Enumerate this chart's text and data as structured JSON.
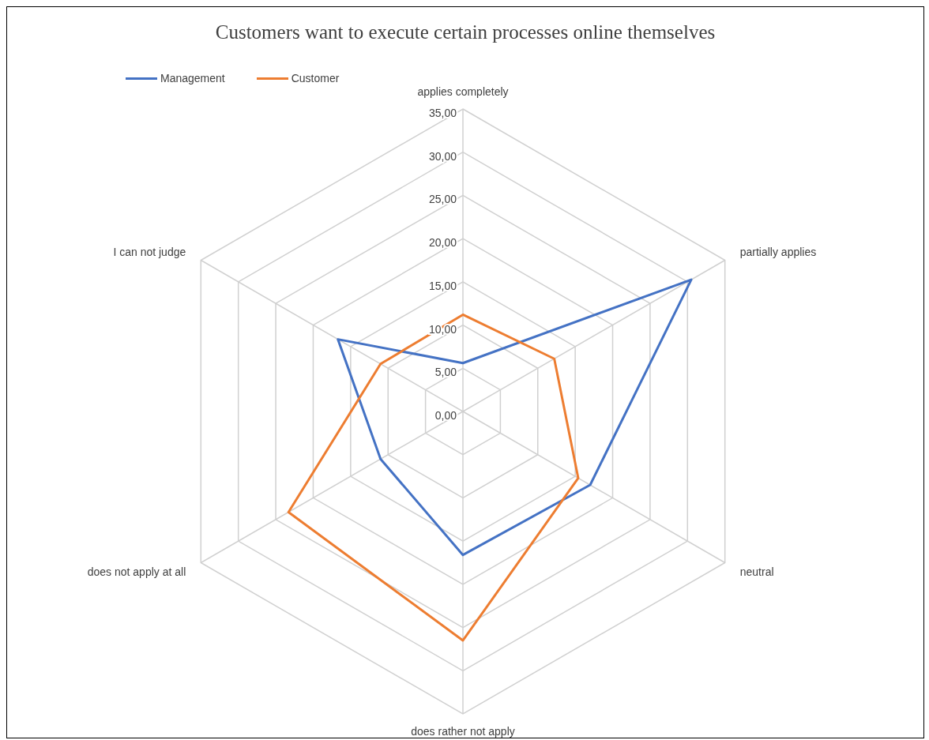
{
  "chart_data": {
    "type": "radar",
    "title": "Customers want to execute certain processes online themselves",
    "categories": [
      "applies completely",
      "partially applies",
      "neutral",
      "does rather not apply",
      "does not apply at all",
      "I can not judge"
    ],
    "series": [
      {
        "name": "Management",
        "color": "#4472c4",
        "values": [
          5.6,
          30.5,
          17,
          16.6,
          11,
          16.7
        ]
      },
      {
        "name": "Customer",
        "color": "#ed7d31",
        "values": [
          11.2,
          12.2,
          15.4,
          26.5,
          23.3,
          11
        ]
      }
    ],
    "ylim": [
      0,
      35
    ],
    "yticks": [
      {
        "value": 0,
        "label": "0,00"
      },
      {
        "value": 5,
        "label": "5,00"
      },
      {
        "value": 10,
        "label": "10,00"
      },
      {
        "value": 15,
        "label": "15,00"
      },
      {
        "value": 20,
        "label": "20,00"
      },
      {
        "value": 25,
        "label": "25,00"
      },
      {
        "value": 30,
        "label": "30,00"
      },
      {
        "value": 35,
        "label": "35,00"
      }
    ],
    "grid": true,
    "legend": "top left"
  }
}
